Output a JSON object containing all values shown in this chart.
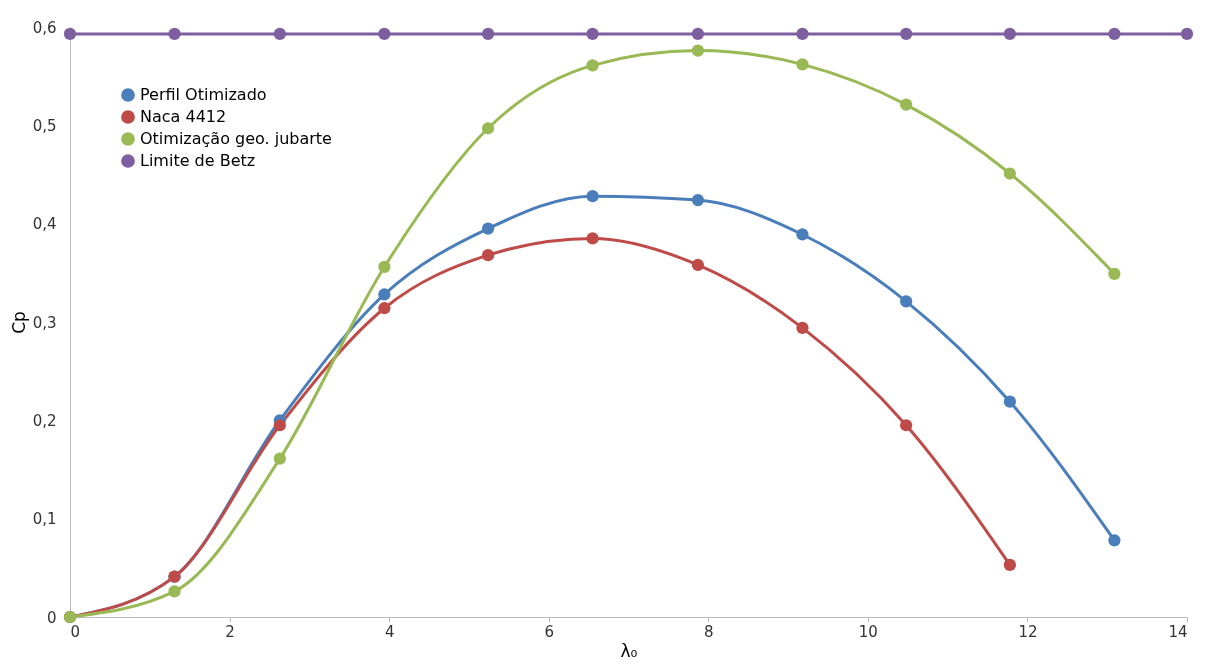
{
  "chart_data": {
    "type": "line",
    "xlabel": "λ₀",
    "ylabel": "Cp",
    "x": [
      0,
      1.31,
      2.63,
      3.94,
      5.24,
      6.55,
      7.87,
      9.18,
      10.48,
      11.78,
      13.09
    ],
    "series": [
      {
        "name": "Perfil Otimizado",
        "color": "#4a7ebb",
        "values": [
          0,
          0.041,
          0.2,
          0.328,
          0.395,
          0.428,
          0.424,
          0.389,
          0.321,
          0.219,
          0.078
        ]
      },
      {
        "name": "Naca 4412",
        "color": "#be4b48",
        "values": [
          0,
          0.041,
          0.195,
          0.314,
          0.368,
          0.385,
          0.358,
          0.294,
          0.195,
          0.053,
          null
        ]
      },
      {
        "name": "Otimização geo. jubarte",
        "color": "#98b954",
        "values": [
          0,
          0.026,
          0.161,
          0.356,
          0.497,
          0.561,
          0.576,
          0.562,
          0.521,
          0.451,
          0.349
        ]
      },
      {
        "name": "Limite de Betz",
        "color": "#7d5fa0",
        "x": [
          0,
          1.31,
          2.63,
          3.94,
          5.24,
          6.55,
          7.87,
          9.18,
          10.48,
          11.78,
          13.09,
          14
        ],
        "values": [
          0.593,
          0.593,
          0.593,
          0.593,
          0.593,
          0.593,
          0.593,
          0.593,
          0.593,
          0.593,
          0.593,
          0.593
        ]
      }
    ],
    "xlim": [
      0,
      14
    ],
    "xticks": [
      0,
      2,
      4,
      6,
      8,
      10,
      12,
      14
    ],
    "ylim": [
      0,
      0.6
    ],
    "yticks": [
      0,
      {
        "value": 0.1,
        "label": "0,1"
      },
      {
        "value": 0.2,
        "label": "0,2"
      },
      {
        "value": 0.3,
        "label": "0,3"
      },
      {
        "value": 0.4,
        "label": "0,4"
      },
      {
        "value": 0.5,
        "label": "0,5"
      },
      {
        "value": 0.6,
        "label": "0,6"
      }
    ],
    "grid": false,
    "legend": "top left",
    "marker": "circle",
    "line_style": "solid"
  }
}
